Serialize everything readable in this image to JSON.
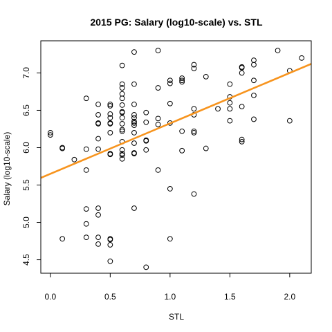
{
  "chart_data": {
    "type": "scatter",
    "title": "2015 PG: Salary (log10-scale) vs. STL",
    "xlabel": "STL",
    "ylabel": "Salary (log10-scale)",
    "xlim": [
      -0.08,
      2.18
    ],
    "ylim": [
      4.32,
      7.43
    ],
    "x_ticks": [
      0.0,
      0.5,
      1.0,
      1.5,
      2.0
    ],
    "x_tick_labels": [
      "0.0",
      "0.5",
      "1.0",
      "1.5",
      "2.0"
    ],
    "y_ticks": [
      4.5,
      5.0,
      5.5,
      6.0,
      6.5,
      7.0
    ],
    "y_tick_labels": [
      "4.5",
      "5.0",
      "5.5",
      "6.0",
      "6.5",
      "7.0"
    ],
    "grid": false,
    "marker": "open-circle",
    "marker_color": "#000000",
    "trend_line": {
      "intercept": 5.65,
      "slope": 0.675,
      "color": "#F7941E"
    },
    "points": [
      [
        0.0,
        6.2
      ],
      [
        0.0,
        6.17
      ],
      [
        0.1,
        6.0
      ],
      [
        0.1,
        5.99
      ],
      [
        0.1,
        4.78
      ],
      [
        0.2,
        5.84
      ],
      [
        0.3,
        6.66
      ],
      [
        0.3,
        5.98
      ],
      [
        0.3,
        5.7
      ],
      [
        0.3,
        5.18
      ],
      [
        0.3,
        4.98
      ],
      [
        0.3,
        4.8
      ],
      [
        0.4,
        6.58
      ],
      [
        0.4,
        6.44
      ],
      [
        0.4,
        6.33
      ],
      [
        0.4,
        6.32
      ],
      [
        0.4,
        6.12
      ],
      [
        0.4,
        5.98
      ],
      [
        0.4,
        5.19
      ],
      [
        0.4,
        5.1
      ],
      [
        0.4,
        4.8
      ],
      [
        0.4,
        4.71
      ],
      [
        0.5,
        6.58
      ],
      [
        0.5,
        6.56
      ],
      [
        0.5,
        6.45
      ],
      [
        0.5,
        6.4
      ],
      [
        0.5,
        6.33
      ],
      [
        0.5,
        6.32
      ],
      [
        0.5,
        6.2
      ],
      [
        0.5,
        5.92
      ],
      [
        0.5,
        5.91
      ],
      [
        0.5,
        4.78
      ],
      [
        0.5,
        4.77
      ],
      [
        0.5,
        4.7
      ],
      [
        0.5,
        4.48
      ],
      [
        0.6,
        7.1
      ],
      [
        0.6,
        6.85
      ],
      [
        0.6,
        6.8
      ],
      [
        0.6,
        6.72
      ],
      [
        0.6,
        6.66
      ],
      [
        0.6,
        6.57
      ],
      [
        0.6,
        6.48
      ],
      [
        0.6,
        6.47
      ],
      [
        0.6,
        6.4
      ],
      [
        0.6,
        6.32
      ],
      [
        0.6,
        6.24
      ],
      [
        0.6,
        6.22
      ],
      [
        0.6,
        6.08
      ],
      [
        0.6,
        5.97
      ],
      [
        0.6,
        5.92
      ],
      [
        0.6,
        5.9
      ],
      [
        0.6,
        5.85
      ],
      [
        0.7,
        7.28
      ],
      [
        0.7,
        6.85
      ],
      [
        0.7,
        6.58
      ],
      [
        0.7,
        6.44
      ],
      [
        0.7,
        6.4
      ],
      [
        0.7,
        6.35
      ],
      [
        0.7,
        6.33
      ],
      [
        0.7,
        6.3
      ],
      [
        0.7,
        6.2
      ],
      [
        0.7,
        6.06
      ],
      [
        0.7,
        5.93
      ],
      [
        0.7,
        5.92
      ],
      [
        0.7,
        5.19
      ],
      [
        0.8,
        6.47
      ],
      [
        0.8,
        6.34
      ],
      [
        0.8,
        6.1
      ],
      [
        0.8,
        6.09
      ],
      [
        0.8,
        5.97
      ],
      [
        0.8,
        4.4
      ],
      [
        0.9,
        7.3
      ],
      [
        0.9,
        6.8
      ],
      [
        0.9,
        6.39
      ],
      [
        0.9,
        6.31
      ],
      [
        0.9,
        5.7
      ],
      [
        1.0,
        6.9
      ],
      [
        1.0,
        6.86
      ],
      [
        1.0,
        6.59
      ],
      [
        1.0,
        6.33
      ],
      [
        1.0,
        5.45
      ],
      [
        1.0,
        4.78
      ],
      [
        1.1,
        6.93
      ],
      [
        1.1,
        6.9
      ],
      [
        1.1,
        6.88
      ],
      [
        1.1,
        6.22
      ],
      [
        1.1,
        5.96
      ],
      [
        1.2,
        7.11
      ],
      [
        1.2,
        7.06
      ],
      [
        1.2,
        6.52
      ],
      [
        1.2,
        6.44
      ],
      [
        1.2,
        6.22
      ],
      [
        1.2,
        6.2
      ],
      [
        1.2,
        5.38
      ],
      [
        1.3,
        6.95
      ],
      [
        1.3,
        5.99
      ],
      [
        1.4,
        6.52
      ],
      [
        1.5,
        6.85
      ],
      [
        1.5,
        6.68
      ],
      [
        1.5,
        6.6
      ],
      [
        1.5,
        6.52
      ],
      [
        1.5,
        6.36
      ],
      [
        1.6,
        7.08
      ],
      [
        1.6,
        7.07
      ],
      [
        1.6,
        7.0
      ],
      [
        1.6,
        6.55
      ],
      [
        1.6,
        6.11
      ],
      [
        1.6,
        6.08
      ],
      [
        1.7,
        7.17
      ],
      [
        1.7,
        7.11
      ],
      [
        1.7,
        6.9
      ],
      [
        1.7,
        6.7
      ],
      [
        1.7,
        6.38
      ],
      [
        1.9,
        7.3
      ],
      [
        2.0,
        7.03
      ],
      [
        2.0,
        6.36
      ],
      [
        2.1,
        7.2
      ]
    ]
  }
}
